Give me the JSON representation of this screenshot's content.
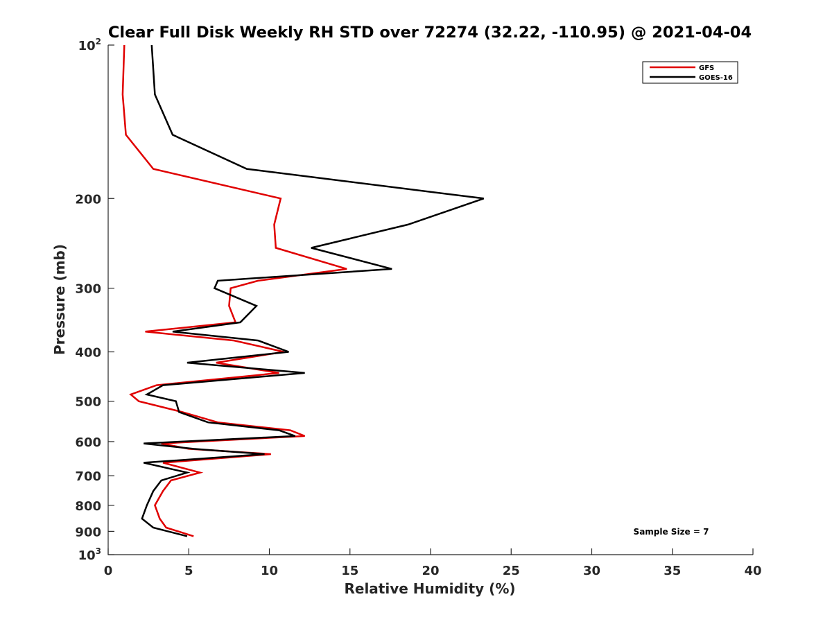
{
  "chart_data": {
    "type": "line",
    "title": "Clear Full Disk Weekly RH STD over 72274 (32.22, -110.95) @ 2021-04-04",
    "xlabel": "Relative Humidity (%)",
    "ylabel": "Pressure (mb)",
    "xlim": [
      0,
      40
    ],
    "ylim": [
      100,
      1000
    ],
    "y_scale": "log",
    "y_reversed": true,
    "x_ticks": [
      "0",
      "5",
      "10",
      "15",
      "20",
      "25",
      "30",
      "35",
      "40"
    ],
    "y_ticks": [
      {
        "value": 100,
        "base": "10",
        "exp": "2"
      },
      {
        "value": 200,
        "label": "200"
      },
      {
        "value": 300,
        "label": "300"
      },
      {
        "value": 400,
        "label": "400"
      },
      {
        "value": 500,
        "label": "500"
      },
      {
        "value": 600,
        "label": "600"
      },
      {
        "value": 700,
        "label": "700"
      },
      {
        "value": 800,
        "label": "800"
      },
      {
        "value": 900,
        "label": "900"
      },
      {
        "value": 1000,
        "base": "10",
        "exp": "3"
      }
    ],
    "grid": false,
    "legend_position": "top-right",
    "annotation": "Sample Size = 7",
    "series": [
      {
        "name": "GFS",
        "color": "#e00000",
        "points": [
          [
            1.0,
            100
          ],
          [
            0.9,
            125
          ],
          [
            1.1,
            150
          ],
          [
            2.8,
            175
          ],
          [
            10.7,
            200
          ],
          [
            10.3,
            225
          ],
          [
            10.4,
            250
          ],
          [
            14.8,
            275
          ],
          [
            9.3,
            290
          ],
          [
            7.6,
            300
          ],
          [
            7.5,
            325
          ],
          [
            7.9,
            350
          ],
          [
            2.3,
            365
          ],
          [
            7.8,
            380
          ],
          [
            10.9,
            400
          ],
          [
            6.7,
            420
          ],
          [
            10.6,
            440
          ],
          [
            3.0,
            465
          ],
          [
            1.4,
            485
          ],
          [
            1.9,
            500
          ],
          [
            4.6,
            525
          ],
          [
            6.8,
            550
          ],
          [
            11.3,
            570
          ],
          [
            12.2,
            585
          ],
          [
            3.3,
            605
          ],
          [
            5.0,
            620
          ],
          [
            10.1,
            635
          ],
          [
            3.4,
            660
          ],
          [
            5.7,
            690
          ],
          [
            3.9,
            715
          ],
          [
            3.4,
            750
          ],
          [
            2.9,
            800
          ],
          [
            3.2,
            850
          ],
          [
            3.6,
            885
          ],
          [
            5.3,
            920
          ]
        ]
      },
      {
        "name": "GOES-16",
        "color": "#000000",
        "points": [
          [
            2.7,
            100
          ],
          [
            2.9,
            125
          ],
          [
            4.0,
            150
          ],
          [
            8.6,
            175
          ],
          [
            23.3,
            200
          ],
          [
            18.6,
            225
          ],
          [
            12.6,
            250
          ],
          [
            17.6,
            275
          ],
          [
            6.8,
            290
          ],
          [
            6.6,
            300
          ],
          [
            9.2,
            325
          ],
          [
            8.2,
            350
          ],
          [
            4.0,
            365
          ],
          [
            9.3,
            380
          ],
          [
            11.2,
            400
          ],
          [
            4.9,
            420
          ],
          [
            12.2,
            440
          ],
          [
            3.4,
            465
          ],
          [
            2.4,
            485
          ],
          [
            4.2,
            500
          ],
          [
            4.4,
            525
          ],
          [
            6.2,
            550
          ],
          [
            10.6,
            570
          ],
          [
            11.6,
            585
          ],
          [
            2.2,
            605
          ],
          [
            5.3,
            620
          ],
          [
            9.7,
            635
          ],
          [
            2.2,
            660
          ],
          [
            4.9,
            690
          ],
          [
            3.3,
            715
          ],
          [
            2.8,
            750
          ],
          [
            2.4,
            800
          ],
          [
            2.1,
            850
          ],
          [
            2.8,
            885
          ],
          [
            4.9,
            920
          ]
        ]
      }
    ]
  }
}
